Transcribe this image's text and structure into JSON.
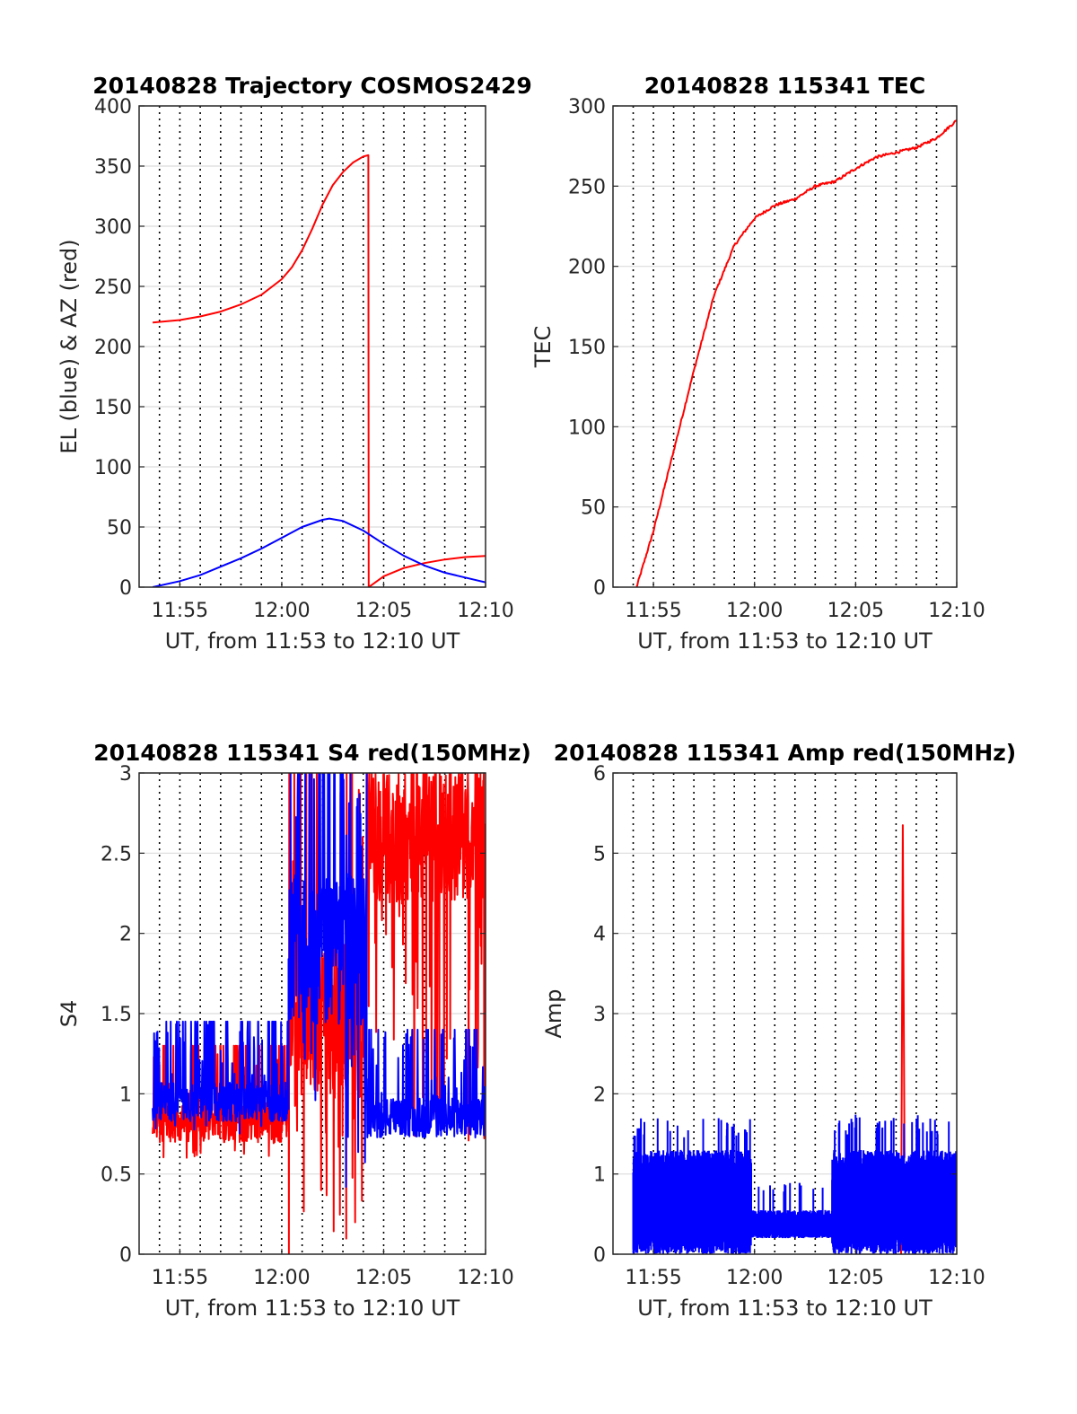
{
  "colors": {
    "red": "#ff0000",
    "blue": "#0000ff"
  },
  "chart_data": [
    {
      "type": "line",
      "title": "20140828 Trajectory COSMOS2429",
      "xlabel": "UT, from 11:53 to 12:10 UT",
      "ylabel": "EL (blue) & AZ (red)",
      "xlim": [
        "11:53",
        "12:10"
      ],
      "ylim": [
        0,
        400
      ],
      "xticks": [
        "11:55",
        "12:00",
        "12:05",
        "12:10"
      ],
      "yticks": [
        0,
        50,
        100,
        150,
        200,
        250,
        300,
        350,
        400
      ],
      "grid": "on",
      "series": [
        {
          "color": "red",
          "style": "smooth",
          "points": [
            [
              "11:53:40",
              220
            ],
            [
              "11:55",
              222
            ],
            [
              "11:56",
              225
            ],
            [
              "11:57",
              229
            ],
            [
              "11:58",
              235
            ],
            [
              "11:59",
              243
            ],
            [
              "12:00",
              256
            ],
            [
              "12:00:30",
              266
            ],
            [
              "12:01",
              280
            ],
            [
              "12:01:30",
              298
            ],
            [
              "12:02",
              318
            ],
            [
              "12:02:30",
              334
            ],
            [
              "12:03",
              345
            ],
            [
              "12:03:30",
              353
            ],
            [
              "12:04",
              358
            ],
            [
              "12:04:15",
              359
            ],
            [
              "12:04:16",
              0
            ],
            [
              "12:05",
              9
            ],
            [
              "12:06",
              16
            ],
            [
              "12:07",
              20
            ],
            [
              "12:08",
              23
            ],
            [
              "12:09",
              25
            ],
            [
              "12:10",
              26
            ]
          ]
        },
        {
          "color": "blue",
          "style": "smooth",
          "points": [
            [
              "11:53:40",
              0
            ],
            [
              "11:55",
              5
            ],
            [
              "11:56",
              10
            ],
            [
              "11:57",
              17
            ],
            [
              "11:58",
              24
            ],
            [
              "11:59",
              32
            ],
            [
              "12:00",
              41
            ],
            [
              "12:01",
              50
            ],
            [
              "12:02",
              56
            ],
            [
              "12:02:20",
              57
            ],
            [
              "12:03",
              55
            ],
            [
              "12:04",
              47
            ],
            [
              "12:05",
              36
            ],
            [
              "12:06",
              26
            ],
            [
              "12:07",
              18
            ],
            [
              "12:08",
              12
            ],
            [
              "12:09",
              8
            ],
            [
              "12:10",
              4
            ]
          ]
        }
      ]
    },
    {
      "type": "line",
      "title": "20140828 115341 TEC",
      "xlabel": "UT, from 11:53 to 12:10 UT",
      "ylabel": "TEC",
      "xlim": [
        "11:53",
        "12:10"
      ],
      "ylim": [
        0,
        300
      ],
      "xticks": [
        "11:55",
        "12:00",
        "12:05",
        "12:10"
      ],
      "yticks": [
        0,
        50,
        100,
        150,
        200,
        250,
        300
      ],
      "grid": "on",
      "series": [
        {
          "color": "red",
          "style": "noisy",
          "noise": 0.8,
          "points": [
            [
              "11:54:10",
              0
            ],
            [
              "11:55",
              35
            ],
            [
              "11:56",
              85
            ],
            [
              "11:57",
              135
            ],
            [
              "11:58",
              182
            ],
            [
              "11:59",
              213
            ],
            [
              "12:00",
              230
            ],
            [
              "12:01",
              238
            ],
            [
              "12:02",
              242
            ],
            [
              "12:03",
              250
            ],
            [
              "12:04",
              253
            ],
            [
              "12:05",
              261
            ],
            [
              "12:06",
              268
            ],
            [
              "12:07",
              271
            ],
            [
              "12:08",
              274
            ],
            [
              "12:09",
              280
            ],
            [
              "12:10",
              291
            ]
          ]
        }
      ]
    },
    {
      "type": "line",
      "title": "20140828 115341 S4 red(150MHz)",
      "xlabel": "UT, from 11:53 to 12:10 UT",
      "ylabel": "S4",
      "xlim": [
        "11:53",
        "12:10"
      ],
      "ylim": [
        0,
        3
      ],
      "xticks": [
        "11:55",
        "12:00",
        "12:05",
        "12:10"
      ],
      "yticks": [
        0,
        0.5,
        1,
        1.5,
        2,
        2.5,
        3
      ],
      "grid": "on",
      "series": [
        {
          "color": "red",
          "style": "scatter-band",
          "segments": [
            {
              "from": "11:53:40",
              "to": "12:00:20",
              "min": 0.6,
              "base": 0.82,
              "max": 1.3
            },
            {
              "from": "12:00:20",
              "to": "12:04:10",
              "min": 0,
              "base": 1.5,
              "max": 3
            },
            {
              "from": "12:04:10",
              "to": "12:10",
              "min": 0.6,
              "base": 2.6,
              "max": 3
            }
          ]
        },
        {
          "color": "blue",
          "style": "scatter-band",
          "segments": [
            {
              "from": "11:53:40",
              "to": "12:00:20",
              "min": 0.75,
              "base": 0.95,
              "max": 1.45
            },
            {
              "from": "12:00:20",
              "to": "12:04:10",
              "min": 0.3,
              "base": 1.9,
              "max": 3
            },
            {
              "from": "12:04:10",
              "to": "12:10",
              "min": 0.7,
              "base": 0.85,
              "max": 1.4
            }
          ]
        }
      ]
    },
    {
      "type": "line",
      "title": "20140828 115341 Amp red(150MHz)",
      "xlabel": "UT, from 11:53 to 12:10 UT",
      "ylabel": "Amp",
      "xlim": [
        "11:53",
        "12:10"
      ],
      "ylim": [
        0,
        6
      ],
      "xticks": [
        "11:55",
        "12:00",
        "12:05",
        "12:10"
      ],
      "yticks": [
        0,
        1,
        2,
        3,
        4,
        5,
        6
      ],
      "grid": "on",
      "series": [
        {
          "color": "red",
          "style": "spike",
          "points": [
            [
              "12:07:15",
              0
            ],
            [
              "12:07:20",
              5.35
            ],
            [
              "12:07:25",
              1.2
            ]
          ]
        },
        {
          "color": "blue",
          "style": "dense-band",
          "segments": [
            {
              "from": "11:54",
              "to": "11:59:50",
              "min": 0,
              "max": 1.3,
              "peak": 1.7
            },
            {
              "from": "11:59:50",
              "to": "12:03:50",
              "min": 0.2,
              "max": 0.55,
              "peak": 0.9
            },
            {
              "from": "12:03:50",
              "to": "12:10",
              "min": 0,
              "max": 1.3,
              "peak": 1.75
            }
          ]
        }
      ]
    }
  ]
}
